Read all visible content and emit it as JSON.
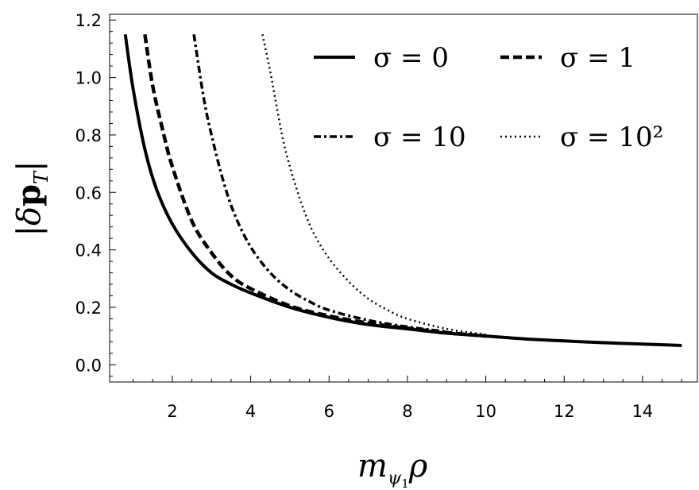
{
  "chart_data": {
    "type": "line",
    "xlabel": "m_{ψ1} ρ",
    "ylabel": "|δp_T|",
    "xlim": [
      0.4,
      15.4
    ],
    "ylim": [
      -0.06,
      1.22
    ],
    "xticks": [
      2,
      4,
      6,
      8,
      10,
      12,
      14
    ],
    "xtick_labels": [
      "2",
      "4",
      "6",
      "8",
      "10",
      "12",
      "14"
    ],
    "yticks": [
      0.0,
      0.2,
      0.4,
      0.6,
      0.8,
      1.0,
      1.2
    ],
    "ytick_labels": [
      "0.0",
      "0.2",
      "0.4",
      "0.6",
      "0.8",
      "1.0",
      "1.2"
    ],
    "grid": false,
    "legend_position": "top-right",
    "legend_columns": 2,
    "series": [
      {
        "name": "σ = 0",
        "style": "solid",
        "color": "#000000",
        "x": [
          0.8,
          1.0,
          1.3,
          1.6,
          2.0,
          2.5,
          3.0,
          3.5,
          4.0,
          5.0,
          6.0,
          7.0,
          8.0,
          9.0,
          10.0,
          11.0,
          12.0,
          13.0,
          14.0,
          15.0
        ],
        "y": [
          1.15,
          0.96,
          0.75,
          0.61,
          0.49,
          0.39,
          0.32,
          0.28,
          0.25,
          0.2,
          0.165,
          0.14,
          0.125,
          0.11,
          0.1,
          0.09,
          0.083,
          0.077,
          0.072,
          0.067
        ]
      },
      {
        "name": "σ = 1",
        "style": "dashed",
        "color": "#000000",
        "x": [
          1.3,
          1.5,
          1.75,
          2.0,
          2.5,
          3.0,
          3.5,
          4.0,
          5.0,
          6.0,
          7.0,
          8.0,
          9.0,
          10.0
        ],
        "y": [
          1.15,
          0.97,
          0.82,
          0.69,
          0.5,
          0.39,
          0.31,
          0.265,
          0.205,
          0.17,
          0.145,
          0.127,
          0.112,
          0.1
        ]
      },
      {
        "name": "σ = 10",
        "style": "dashdot",
        "color": "#000000",
        "x": [
          2.55,
          2.8,
          3.0,
          3.3,
          3.6,
          4.0,
          4.5,
          5.0,
          5.5,
          6.0,
          7.0,
          8.0,
          9.0
        ],
        "y": [
          1.15,
          0.93,
          0.8,
          0.64,
          0.52,
          0.41,
          0.32,
          0.26,
          0.22,
          0.19,
          0.155,
          0.132,
          0.115
        ]
      },
      {
        "name": "σ = 10²",
        "style": "dotted",
        "color": "#000000",
        "x": [
          4.3,
          4.5,
          4.8,
          5.0,
          5.3,
          5.6,
          6.0,
          6.5,
          7.0,
          7.5,
          8.0,
          9.0,
          10.0
        ],
        "y": [
          1.15,
          1.02,
          0.8,
          0.69,
          0.56,
          0.46,
          0.37,
          0.29,
          0.23,
          0.19,
          0.16,
          0.125,
          0.105
        ]
      }
    ]
  }
}
